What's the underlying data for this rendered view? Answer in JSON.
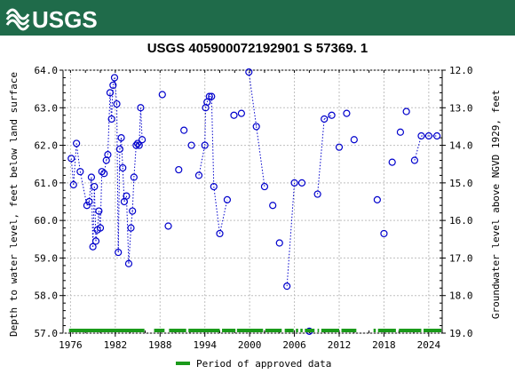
{
  "header": {
    "logo_text": "USGS",
    "bar_color": "#1f6b4a"
  },
  "chart_data": {
    "type": "scatter",
    "title": "USGS 405900072192901 S 57369. 1",
    "ylabel_left": "Depth to water level, feet below land surface",
    "ylabel_right": "Groundwater level above NGVD 1929, feet",
    "xlim": [
      1975.0,
      2025.8
    ],
    "ylim_left": [
      64.0,
      57.0
    ],
    "ylim_right": [
      12.0,
      19.0
    ],
    "x_ticks": [
      1976,
      1982,
      1988,
      1994,
      2000,
      2006,
      2012,
      2018,
      2024
    ],
    "y_ticks_left": [
      "57.0",
      "58.0",
      "59.0",
      "60.0",
      "61.0",
      "62.0",
      "63.0",
      "64.0"
    ],
    "y_ticks_right": [
      "19.0",
      "18.0",
      "17.0",
      "16.0",
      "15.0",
      "14.0",
      "13.0",
      "12.0"
    ],
    "series": [
      {
        "color": "#0000cc",
        "x": [
          1976.1,
          1976.4,
          1976.8,
          1977.3,
          1978.2,
          1978.5,
          1978.8,
          1979.0,
          1979.2,
          1979.4,
          1979.6,
          1979.8,
          1980.0,
          1980.2,
          1980.5,
          1980.8,
          1981.0,
          1981.3,
          1981.5,
          1981.7,
          1981.9,
          1982.2,
          1982.4,
          1982.6,
          1982.8,
          1983.0,
          1983.2,
          1983.5,
          1983.8,
          1984.1,
          1984.3,
          1984.5,
          1984.8,
          1985.0,
          1985.2,
          1985.4,
          1985.6,
          1988.3,
          1989.1,
          1990.5,
          1991.2,
          1992.2,
          1993.2,
          1994.0,
          1994.1,
          1994.3,
          1994.6,
          1994.9,
          1995.2,
          1996.0,
          1997.0,
          1997.9,
          1998.9,
          1999.9,
          2000.9,
          2002.0,
          2003.1,
          2004.0,
          2005.0,
          2006.0,
          2007.0,
          2008.0,
          2009.1,
          2010.0,
          2011.0,
          2012.0,
          2013.0,
          2014.0,
          2017.1,
          2018.0,
          2019.1,
          2020.2,
          2021.0,
          2022.1,
          2023.0,
          2024.0,
          2025.1
        ],
        "y": [
          61.65,
          60.95,
          62.05,
          61.3,
          60.4,
          60.5,
          61.15,
          59.3,
          60.9,
          59.45,
          59.75,
          60.25,
          59.8,
          61.3,
          61.25,
          61.6,
          61.75,
          63.4,
          62.7,
          63.6,
          63.8,
          63.1,
          59.15,
          61.9,
          62.2,
          61.4,
          60.5,
          60.65,
          58.85,
          59.8,
          60.25,
          61.15,
          62.0,
          62.05,
          62.0,
          63.0,
          62.15,
          63.35,
          59.85,
          61.35,
          62.4,
          62.0,
          61.2,
          62.0,
          63.0,
          63.15,
          63.3,
          63.3,
          60.9,
          59.65,
          60.55,
          62.8,
          62.85,
          63.95,
          62.5,
          60.9,
          60.4,
          59.4,
          58.25,
          61.0,
          61.0,
          57.05,
          60.7,
          62.7,
          62.8,
          61.95,
          62.85,
          62.15,
          60.55,
          59.65,
          61.55,
          62.35,
          62.9,
          61.6,
          62.25,
          62.25,
          62.25
        ],
        "gap_before_index": [
          37,
          38,
          39,
          40,
          41,
          42,
          51,
          52,
          53,
          56,
          57,
          58,
          60,
          61,
          62,
          65,
          66,
          67,
          68,
          69,
          70,
          71,
          72,
          73
        ]
      }
    ],
    "approved_periods": [
      [
        1975.8,
        1985.9
      ],
      [
        1987.2,
        1988.6
      ],
      [
        1989.2,
        1991.5
      ],
      [
        1991.8,
        1996.0
      ],
      [
        1996.3,
        1998.1
      ],
      [
        1998.3,
        2001.8
      ],
      [
        2002.1,
        2004.3
      ],
      [
        2004.7,
        2005.9
      ],
      [
        2006.2,
        2006.5
      ],
      [
        2006.8,
        2007.1
      ],
      [
        2007.4,
        2008.7
      ],
      [
        2009.1,
        2009.3
      ],
      [
        2009.6,
        2012.0
      ],
      [
        2012.3,
        2014.3
      ],
      [
        2016.6,
        2016.9
      ],
      [
        2017.2,
        2019.6
      ],
      [
        2020.0,
        2023.0
      ],
      [
        2023.3,
        2025.7
      ]
    ],
    "approved_color": "#1a9a1a",
    "legend": {
      "label": "Period of approved data",
      "placement": "bottom-center"
    }
  }
}
